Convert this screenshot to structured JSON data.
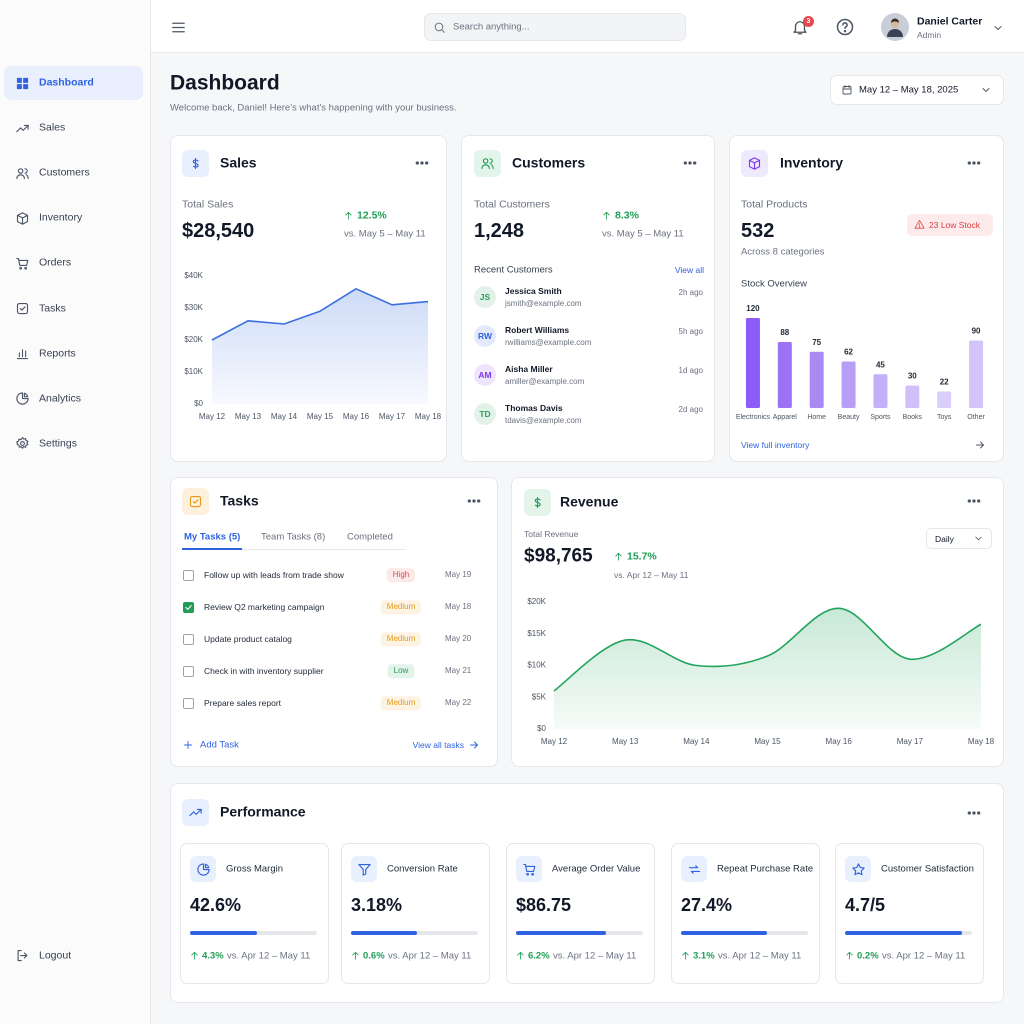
{
  "sidebar": {
    "nav": [
      "Dashboard",
      "Sales",
      "Customers",
      "Inventory",
      "Orders",
      "Tasks",
      "Reports",
      "Analytics",
      "Settings"
    ],
    "active": 0,
    "logout": "Logout"
  },
  "topbar": {
    "search_placeholder": "Search anything...",
    "notifications": "3",
    "user_name": "Daniel Carter",
    "user_role": "Admin"
  },
  "header": {
    "title": "Dashboard",
    "subtitle": "Welcome back, Daniel! Here's what's happening with your business.",
    "date_range": "May 12 – May 18, 2025"
  },
  "sales": {
    "title": "Sales",
    "label": "Total Sales",
    "value": "$28,540",
    "change": "12.5%",
    "compare": "vs. May 5 – May 11"
  },
  "customers": {
    "title": "Customers",
    "label": "Total Customers",
    "value": "1,248",
    "change": "8.3%",
    "compare": "vs. May 5 – May 11",
    "recent_title": "Recent Customers",
    "view_all": "View all",
    "recent": [
      {
        "initials": "JS",
        "name": "Jessica Smith",
        "email": "jsmith@example.com",
        "time": "2h ago",
        "color": "#2e9d5b"
      },
      {
        "initials": "RW",
        "name": "Robert Williams",
        "email": "rwilliams@example.com",
        "time": "5h ago",
        "color": "#2f62e0"
      },
      {
        "initials": "AM",
        "name": "Aisha Miller",
        "email": "amiller@example.com",
        "time": "1d ago",
        "color": "#7c3aed"
      },
      {
        "initials": "TD",
        "name": "Thomas Davis",
        "email": "tdavis@example.com",
        "time": "2d ago",
        "color": "#2e9d5b"
      }
    ]
  },
  "inventory": {
    "title": "Inventory",
    "label": "Total Products",
    "value": "532",
    "alert": "23 Low Stock",
    "note": "Across 8 categories",
    "link": "View full inventory"
  },
  "tasks": {
    "title": "Tasks",
    "tabs": [
      "My Tasks (5)",
      "Team Tasks (8)",
      "Completed"
    ],
    "active_tab": 0,
    "items": [
      {
        "text": "Follow up with leads from trade show",
        "priority": "High",
        "color": "#e5484d",
        "date": "May 19",
        "done": false
      },
      {
        "text": "Review Q2 marketing campaign",
        "priority": "Medium",
        "color": "#e69a1c",
        "date": "May 18",
        "done": true
      },
      {
        "text": "Update product catalog",
        "priority": "Medium",
        "color": "#e69a1c",
        "date": "May 20",
        "done": false
      },
      {
        "text": "Check in with inventory supplier",
        "priority": "Low",
        "color": "#1f9d55",
        "date": "May 21",
        "done": false
      },
      {
        "text": "Prepare sales report",
        "priority": "Medium",
        "color": "#e69a1c",
        "date": "May 22",
        "done": false
      }
    ],
    "add": "Add Task",
    "view_all": "View all tasks"
  },
  "revenue": {
    "title": "Revenue",
    "label": "Total Revenue",
    "value": "$98,765",
    "change": "15.7%",
    "compare": "vs. Apr 12 – May 11",
    "period": "Daily"
  },
  "performance": {
    "title": "Performance",
    "metrics": [
      {
        "name": "Gross Margin",
        "value": "42.6%",
        "change": "4.3%",
        "compare": "vs. Apr 12 – May 11",
        "progress": 53
      },
      {
        "name": "Conversion Rate",
        "value": "3.18%",
        "change": "0.6%",
        "compare": "vs. Apr 12 – May 11",
        "progress": 52
      },
      {
        "name": "Average Order Value",
        "value": "$86.75",
        "change": "6.2%",
        "compare": "vs. Apr 12 – May 11",
        "progress": 71
      },
      {
        "name": "Repeat Purchase Rate",
        "value": "27.4%",
        "change": "3.1%",
        "compare": "vs. Apr 12 – May 11",
        "progress": 68
      },
      {
        "name": "Customer Satisfaction",
        "value": "4.7/5",
        "change": "0.2%",
        "compare": "vs. Apr 12 – May 11",
        "progress": 92
      }
    ]
  },
  "chart_data": [
    {
      "type": "line",
      "categories": [
        "May 12",
        "May 13",
        "May 14",
        "May 15",
        "May 16",
        "May 17",
        "May 18"
      ],
      "values": [
        20000,
        26000,
        25000,
        29000,
        36000,
        31000,
        32000
      ],
      "color": "#3b6fe0",
      "fill": true,
      "smooth": false,
      "grid": false,
      "ylim": [
        0,
        40000
      ],
      "yticks": [
        {
          "value": 0,
          "label": "$0"
        },
        {
          "value": 10000,
          "label": "$10K"
        },
        {
          "value": 20000,
          "label": "$20K"
        },
        {
          "value": 30000,
          "label": "$30K"
        },
        {
          "value": 40000,
          "label": "$40K"
        }
      ]
    },
    {
      "type": "bar",
      "title": "Stock Overview",
      "categories": [
        "Electronics",
        "Apparel",
        "Home",
        "Beauty",
        "Sports",
        "Books",
        "Toys",
        "Other"
      ],
      "values": [
        120,
        88,
        75,
        62,
        45,
        30,
        22,
        90
      ],
      "colors": [
        "#8b5cf6",
        "#9b72f3",
        "#a98af5",
        "#b79df6",
        "#c4b0f8",
        "#cfc0f9",
        "#d9cefb",
        "#d2c4fa"
      ]
    },
    {
      "type": "line",
      "categories": [
        "May 12",
        "May 13",
        "May 14",
        "May 15",
        "May 16",
        "May 17",
        "May 18"
      ],
      "values": [
        6000,
        14000,
        10000,
        11500,
        19000,
        11000,
        16500
      ],
      "color": "#22a55b",
      "fill": true,
      "smooth": true,
      "grid": false,
      "ylim": [
        0,
        20000
      ],
      "yticks": [
        {
          "value": 0,
          "label": "$0"
        },
        {
          "value": 5000,
          "label": "$5K"
        },
        {
          "value": 10000,
          "label": "$10K"
        },
        {
          "value": 15000,
          "label": "$15K"
        },
        {
          "value": 20000,
          "label": "$20K"
        }
      ]
    }
  ]
}
